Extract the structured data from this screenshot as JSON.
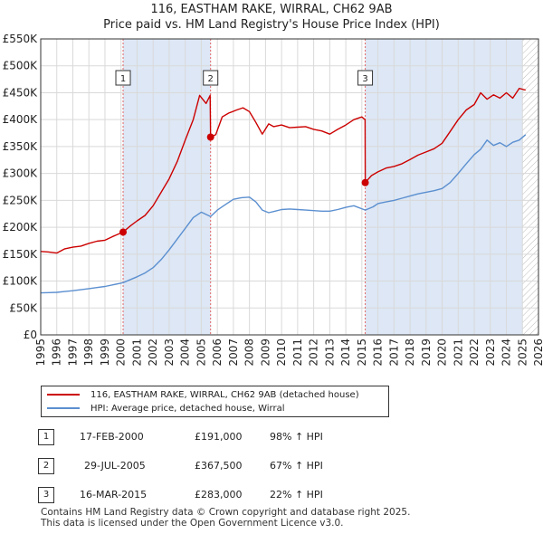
{
  "colors": {
    "property": "#cc0000",
    "hpi": "#5b8fd0",
    "band": "#dde7f5",
    "grid": "#d9d9d9",
    "vline": "#e06666"
  },
  "chart_data": {
    "type": "line",
    "title": "116, EASTHAM RAKE, WIRRAL, CH62 9AB",
    "subtitle": "Price paid vs. HM Land Registry's House Price Index (HPI)",
    "xlim": [
      1995,
      2026
    ],
    "ylim": [
      0,
      550000
    ],
    "yticks": [
      0,
      50000,
      100000,
      150000,
      200000,
      250000,
      300000,
      350000,
      400000,
      450000,
      500000,
      550000
    ],
    "ytick_labels": [
      "£0",
      "£50K",
      "£100K",
      "£150K",
      "£200K",
      "£250K",
      "£300K",
      "£350K",
      "£400K",
      "£450K",
      "£500K",
      "£550K"
    ],
    "xticks": [
      1995,
      1996,
      1997,
      1998,
      1999,
      2000,
      2001,
      2002,
      2003,
      2004,
      2005,
      2006,
      2007,
      2008,
      2009,
      2010,
      2011,
      2012,
      2013,
      2014,
      2015,
      2016,
      2017,
      2018,
      2019,
      2020,
      2021,
      2022,
      2023,
      2024,
      2025,
      2026
    ],
    "shaded_ranges": [
      [
        2000.13,
        2005.58
      ],
      [
        2015.21,
        2025.0
      ]
    ],
    "hatched_range": [
      2025.0,
      2026
    ],
    "series": [
      {
        "name": "116, EASTHAM RAKE, WIRRAL, CH62 9AB (detached house)",
        "color": "#cc0000",
        "x": [
          1995.0,
          1995.5,
          1996.0,
          1996.5,
          1997.0,
          1997.5,
          1998.0,
          1998.5,
          1999.0,
          1999.5,
          2000.13,
          2000.6,
          2001.0,
          2001.5,
          2002.0,
          2002.5,
          2003.0,
          2003.5,
          2004.0,
          2004.5,
          2004.9,
          2005.3,
          2005.55,
          2005.58,
          2005.9,
          2006.3,
          2006.7,
          2007.2,
          2007.6,
          2008.0,
          2008.4,
          2008.8,
          2009.2,
          2009.5,
          2010.0,
          2010.5,
          2011.0,
          2011.5,
          2012.0,
          2012.5,
          2013.0,
          2013.5,
          2014.0,
          2014.5,
          2015.0,
          2015.2,
          2015.21,
          2015.6,
          2016.0,
          2016.5,
          2017.0,
          2017.5,
          2018.0,
          2018.5,
          2019.0,
          2019.5,
          2020.0,
          2020.5,
          2021.0,
          2021.5,
          2022.0,
          2022.4,
          2022.8,
          2023.2,
          2023.6,
          2024.0,
          2024.4,
          2024.8,
          2025.2
        ],
        "values": [
          155000,
          154000,
          152000,
          160000,
          163000,
          165000,
          170000,
          174000,
          176000,
          183000,
          191000,
          203000,
          212000,
          222000,
          240000,
          265000,
          290000,
          322000,
          362000,
          400000,
          445000,
          430000,
          445000,
          367500,
          372000,
          405000,
          412000,
          418000,
          422000,
          415000,
          395000,
          373000,
          392000,
          387000,
          390000,
          385000,
          386000,
          387000,
          382000,
          379000,
          373000,
          382000,
          390000,
          400000,
          405000,
          400000,
          283000,
          296000,
          303000,
          310000,
          313000,
          318000,
          326000,
          334000,
          340000,
          346000,
          356000,
          378000,
          400000,
          418000,
          428000,
          450000,
          438000,
          446000,
          440000,
          450000,
          440000,
          458000,
          455000
        ]
      },
      {
        "name": "HPI: Average price, detached house, Wirral",
        "color": "#5b8fd0",
        "x": [
          1995.0,
          1995.5,
          1996.0,
          1996.5,
          1997.0,
          1997.5,
          1998.0,
          1998.5,
          1999.0,
          1999.5,
          2000.13,
          2000.6,
          2001.0,
          2001.5,
          2002.0,
          2002.5,
          2003.0,
          2003.5,
          2004.0,
          2004.5,
          2005.0,
          2005.58,
          2006.0,
          2006.5,
          2007.0,
          2007.5,
          2008.0,
          2008.4,
          2008.8,
          2009.2,
          2009.6,
          2010.0,
          2010.5,
          2011.0,
          2011.5,
          2012.0,
          2012.5,
          2013.0,
          2013.5,
          2014.0,
          2014.5,
          2015.21,
          2015.7,
          2016.0,
          2016.5,
          2017.0,
          2017.5,
          2018.0,
          2018.5,
          2019.0,
          2019.5,
          2020.0,
          2020.5,
          2021.0,
          2021.5,
          2022.0,
          2022.4,
          2022.8,
          2023.2,
          2023.6,
          2024.0,
          2024.4,
          2024.8,
          2025.2
        ],
        "values": [
          78000,
          78500,
          79000,
          80500,
          82000,
          84000,
          86000,
          88000,
          90000,
          93000,
          97000,
          103000,
          108000,
          115000,
          125000,
          140000,
          158000,
          178000,
          198000,
          218000,
          228000,
          220000,
          232000,
          242000,
          252000,
          255000,
          256000,
          247000,
          232000,
          227000,
          230000,
          233000,
          234000,
          233000,
          232000,
          231000,
          230000,
          230000,
          233000,
          237000,
          240000,
          232000,
          238000,
          244000,
          247000,
          250000,
          254000,
          258000,
          262000,
          265000,
          268000,
          272000,
          283000,
          300000,
          318000,
          335000,
          345000,
          362000,
          352000,
          357000,
          350000,
          358000,
          362000,
          372000
        ]
      }
    ],
    "sale_markers": [
      {
        "label": "1",
        "x": 2000.13,
        "value": 191000
      },
      {
        "label": "2",
        "x": 2005.58,
        "value": 367500
      },
      {
        "label": "3",
        "x": 2015.21,
        "value": 283000
      }
    ]
  },
  "legend": {
    "property_label": "116, EASTHAM RAKE, WIRRAL, CH62 9AB (detached house)",
    "hpi_label": "HPI: Average price, detached house, Wirral"
  },
  "sales": [
    {
      "num": "1",
      "date": "17-FEB-2000",
      "price": "£191,000",
      "hpi": "98% ↑ HPI"
    },
    {
      "num": "2",
      "date": "29-JUL-2005",
      "price": "£367,500",
      "hpi": "67% ↑ HPI"
    },
    {
      "num": "3",
      "date": "16-MAR-2015",
      "price": "£283,000",
      "hpi": "22% ↑ HPI"
    }
  ],
  "footer": {
    "line1": "Contains HM Land Registry data © Crown copyright and database right 2025.",
    "line2": "This data is licensed under the Open Government Licence v3.0."
  }
}
